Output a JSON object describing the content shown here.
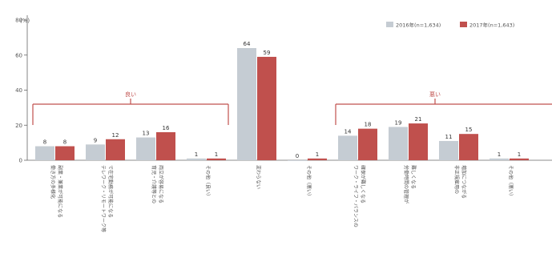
{
  "chart_data": {
    "type": "bar",
    "unit_label": "(%)",
    "yticks": [
      0,
      20,
      40,
      60,
      80
    ],
    "ylim": [
      0,
      80
    ],
    "legend_position": "top-right",
    "series": [
      {
        "name": "2016年(n=1,634)",
        "color": "#c5ccd3",
        "values": [
          8,
          9,
          13,
          1,
          64,
          0,
          14,
          19,
          11,
          1
        ]
      },
      {
        "name": "2017年(n=1,643)",
        "color": "#c0504d",
        "values": [
          8,
          12,
          16,
          1,
          59,
          1,
          18,
          21,
          15,
          1
        ]
      }
    ],
    "value_labels": {
      "s0": [
        "8",
        "9",
        "13",
        "1",
        "64",
        "0",
        "14",
        "19",
        "11",
        "1"
      ],
      "s1": [
        "8",
        "12",
        "16",
        "1",
        "59",
        "1",
        "18",
        "21",
        "15",
        "1"
      ]
    },
    "categories": [
      {
        "lines": [
          "働き方の多様化",
          "副業・兼業が可能になる"
        ]
      },
      {
        "lines": [
          "テレワーク・リモートワーク等",
          "で在宅勤務が可能になる"
        ]
      },
      {
        "lines": [
          "育児・介護等との",
          "両立が容易になる"
        ]
      },
      {
        "lines": [
          "その他（良い）"
        ]
      },
      {
        "lines": [
          "変わらない"
        ]
      },
      {
        "lines": [
          "その他（悪い）"
        ]
      },
      {
        "lines": [
          "ワーク・ライフ・バランスの",
          "確保が難しくなる"
        ]
      },
      {
        "lines": [
          "労働時間の管理が",
          "難しくなる"
        ]
      },
      {
        "lines": [
          "非正規雇用の",
          "増加につながる"
        ]
      },
      {
        "lines": [
          "その他（悪い）"
        ]
      }
    ],
    "groups": [
      {
        "label": "良い",
        "color": "#c0504d"
      },
      {
        "label": "悪い",
        "color": "#c0504d"
      }
    ]
  }
}
